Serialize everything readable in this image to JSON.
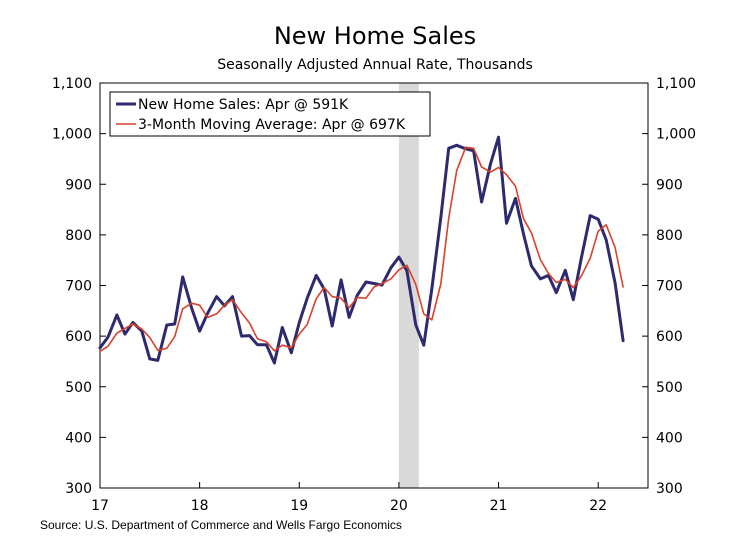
{
  "chart_data": {
    "type": "line",
    "title": "New Home Sales",
    "subtitle": "Seasonally Adjusted Annual Rate, Thousands",
    "source": "Source: U.S. Department of Commerce and Wells Fargo Economics",
    "ylim": [
      300,
      1100
    ],
    "yticks": [
      300,
      400,
      500,
      600,
      700,
      800,
      900,
      1000,
      1100
    ],
    "ytick_labels": [
      "300",
      "400",
      "500",
      "600",
      "700",
      "800",
      "900",
      "1,000",
      "1,100"
    ],
    "xlim": [
      2017.0,
      2022.5
    ],
    "xticks": [
      2017,
      2018,
      2019,
      2020,
      2021,
      2022
    ],
    "xtick_labels": [
      "17",
      "18",
      "19",
      "20",
      "21",
      "22"
    ],
    "recession_shade": [
      2020.0,
      2020.2
    ],
    "legend_position": "top-left",
    "colors": {
      "sales": "#2e2a6e",
      "avg": "#d9412b",
      "shade": "#d9d9d9"
    },
    "series": [
      {
        "name": "New Home Sales: Apr @ 591K",
        "color": "#2e2a6e",
        "x": [
          2017.0,
          2017.08,
          2017.17,
          2017.25,
          2017.33,
          2017.42,
          2017.5,
          2017.58,
          2017.67,
          2017.75,
          2017.83,
          2017.92,
          2018.0,
          2018.08,
          2018.17,
          2018.25,
          2018.33,
          2018.42,
          2018.5,
          2018.58,
          2018.67,
          2018.75,
          2018.83,
          2018.92,
          2019.0,
          2019.08,
          2019.17,
          2019.25,
          2019.33,
          2019.42,
          2019.5,
          2019.58,
          2019.67,
          2019.75,
          2019.83,
          2019.92,
          2020.0,
          2020.08,
          2020.17,
          2020.25,
          2020.33,
          2020.42,
          2020.5,
          2020.58,
          2020.67,
          2020.75,
          2020.83,
          2020.92,
          2021.0,
          2021.08,
          2021.17,
          2021.25,
          2021.33,
          2021.42,
          2021.5,
          2021.58,
          2021.67,
          2021.75,
          2021.83,
          2021.92,
          2022.0,
          2022.08,
          2022.17,
          2022.25
        ],
        "values": [
          577,
          598,
          642,
          604,
          627,
          610,
          555,
          552,
          622,
          624,
          717,
          655,
          610,
          645,
          678,
          660,
          678,
          600,
          601,
          583,
          583,
          547,
          617,
          567,
          627,
          675,
          720,
          693,
          620,
          711,
          637,
          680,
          707,
          704,
          701,
          735,
          756,
          729,
          622,
          582,
          693,
          834,
          971,
          977,
          970,
          966,
          865,
          941,
          993,
          823,
          872,
          802,
          739,
          713,
          720,
          686,
          730,
          672,
          753,
          838,
          831,
          790,
          705,
          591
        ]
      },
      {
        "name": "3-Month Moving Average: Apr @ 697K",
        "color": "#d9412b",
        "x": [
          2017.0,
          2017.08,
          2017.17,
          2017.25,
          2017.33,
          2017.42,
          2017.5,
          2017.58,
          2017.67,
          2017.75,
          2017.83,
          2017.92,
          2018.0,
          2018.08,
          2018.17,
          2018.25,
          2018.33,
          2018.42,
          2018.5,
          2018.58,
          2018.67,
          2018.75,
          2018.83,
          2018.92,
          2019.0,
          2019.08,
          2019.17,
          2019.25,
          2019.33,
          2019.42,
          2019.5,
          2019.58,
          2019.67,
          2019.75,
          2019.83,
          2019.92,
          2020.0,
          2020.08,
          2020.17,
          2020.25,
          2020.33,
          2020.42,
          2020.5,
          2020.58,
          2020.67,
          2020.75,
          2020.83,
          2020.92,
          2021.0,
          2021.08,
          2021.17,
          2021.25,
          2021.33,
          2021.42,
          2021.5,
          2021.58,
          2021.67,
          2021.75,
          2021.83,
          2021.92,
          2022.0,
          2022.08,
          2022.17,
          2022.25
        ],
        "values": [
          570,
          580,
          606,
          615,
          624,
          614,
          597,
          572,
          576,
          599,
          654,
          665,
          661,
          637,
          644,
          661,
          672,
          646,
          626,
          595,
          589,
          571,
          582,
          577,
          604,
          623,
          674,
          696,
          678,
          675,
          656,
          676,
          675,
          697,
          704,
          713,
          731,
          740,
          702,
          644,
          632,
          703,
          833,
          927,
          973,
          971,
          934,
          924,
          933,
          919,
          896,
          832,
          804,
          751,
          724,
          706,
          712,
          696,
          718,
          754,
          807,
          820,
          775,
          697
        ]
      }
    ]
  }
}
